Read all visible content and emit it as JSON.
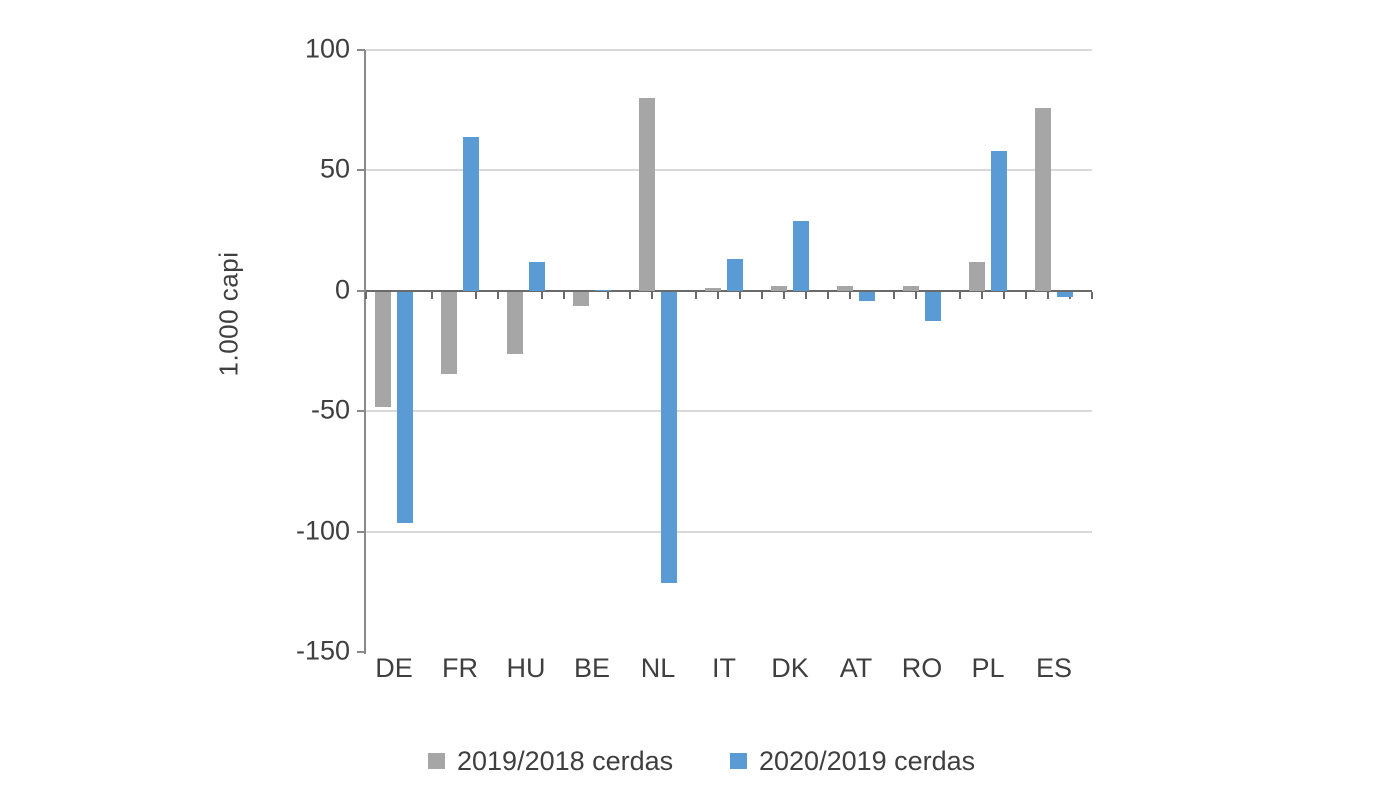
{
  "chart_data": {
    "type": "bar",
    "title": "",
    "xlabel": "",
    "ylabel": "1.000 capi",
    "categories": [
      "DE",
      "FR",
      "HU",
      "BE",
      "NL",
      "IT",
      "DK",
      "AT",
      "RO",
      "PL",
      "ES"
    ],
    "series": [
      {
        "name": "2019/2018 cerdas",
        "color": "#A6A6A6",
        "values": [
          -48,
          -34,
          -26,
          -6,
          80,
          1,
          2,
          2,
          2,
          12,
          76
        ]
      },
      {
        "name": "2020/2019 cerdas",
        "color": "#5B9BD5",
        "values": [
          -96,
          64,
          12,
          0.5,
          -121,
          13,
          29,
          -4,
          -12,
          58,
          -2
        ]
      }
    ],
    "ylim": [
      -150,
      100
    ],
    "yticks": [
      100,
      50,
      0,
      -50,
      -100,
      -150
    ],
    "grid": true,
    "legend_position": "bottom"
  },
  "colors": {
    "gridline": "#D9D9D9",
    "axis_line": "#898989",
    "zero_axis_line": "#6A6A6A",
    "tick_mark": "#6A6A6A",
    "text": "#3F3F3F",
    "background": "#FFFFFF"
  }
}
